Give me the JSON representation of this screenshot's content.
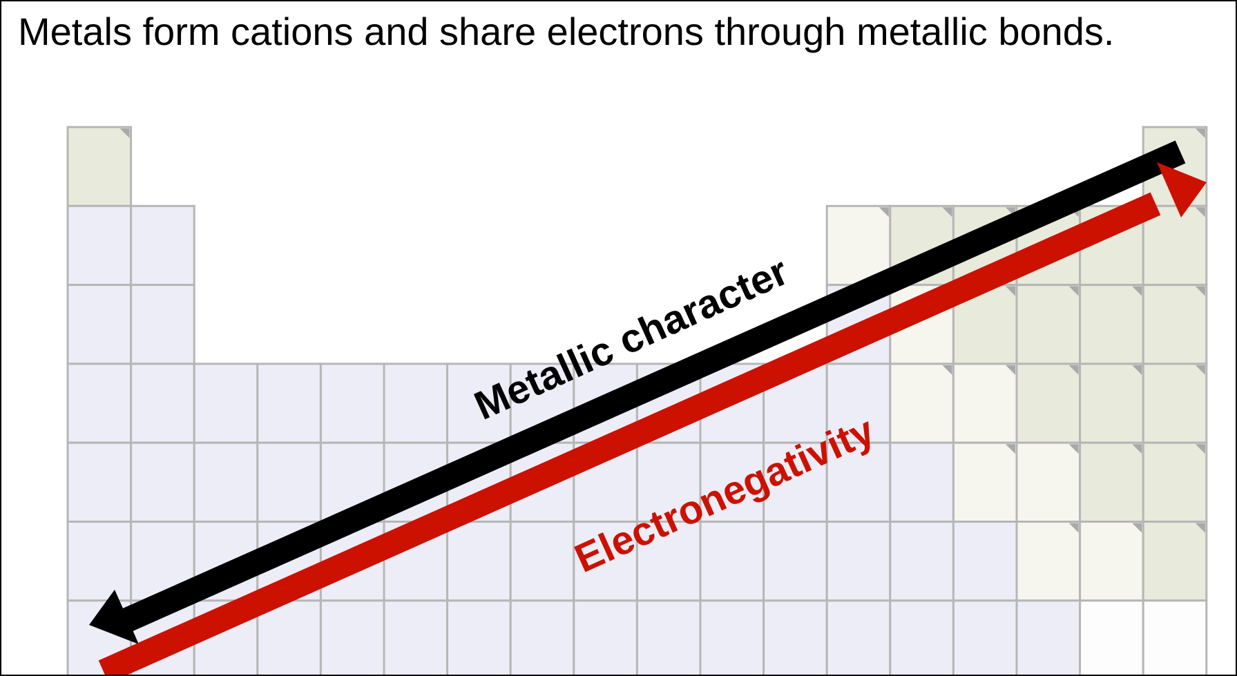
{
  "slide": {
    "title": "Metals form cations and share electrons through metallic bonds."
  },
  "periodic_table": {
    "rows": 7,
    "columns": 18,
    "colors": {
      "metal": "#ededf7",
      "metalloid": "#f6f6ef",
      "nonmetal": "#e8eadb",
      "blank": "#fdfdfd",
      "grid_line": "#b6b6b6"
    },
    "cell_types": [
      [
        "nonmetal",
        null,
        null,
        null,
        null,
        null,
        null,
        null,
        null,
        null,
        null,
        null,
        null,
        null,
        null,
        null,
        null,
        "nonmetal"
      ],
      [
        "metal",
        "metal",
        null,
        null,
        null,
        null,
        null,
        null,
        null,
        null,
        null,
        null,
        "metalloid",
        "nonmetal",
        "nonmetal",
        "nonmetal",
        "nonmetal",
        "nonmetal"
      ],
      [
        "metal",
        "metal",
        null,
        null,
        null,
        null,
        null,
        null,
        null,
        null,
        null,
        null,
        "metal",
        "metalloid",
        "nonmetal",
        "nonmetal",
        "nonmetal",
        "nonmetal"
      ],
      [
        "metal",
        "metal",
        "metal",
        "metal",
        "metal",
        "metal",
        "metal",
        "metal",
        "metal",
        "metal",
        "metal",
        "metal",
        "metal",
        "metalloid",
        "metalloid",
        "nonmetal",
        "nonmetal",
        "nonmetal"
      ],
      [
        "metal",
        "metal",
        "metal",
        "metal",
        "metal",
        "metal",
        "metal",
        "metal",
        "metal",
        "metal",
        "metal",
        "metal",
        "metal",
        "metal",
        "metalloid",
        "metalloid",
        "nonmetal",
        "nonmetal"
      ],
      [
        "metal",
        "metal",
        "metal",
        "metal",
        "metal",
        "metal",
        "metal",
        "metal",
        "metal",
        "metal",
        "metal",
        "metal",
        "metal",
        "metal",
        "metal",
        "metalloid",
        "metalloid",
        "nonmetal"
      ],
      [
        "metal",
        "metal",
        "metal",
        "metal",
        "metal",
        "metal",
        "metal",
        "metal",
        "metal",
        "metal",
        "metal",
        "metal",
        "metal",
        "metal",
        "metal",
        "metal",
        "blank",
        "blank"
      ]
    ]
  },
  "trends": {
    "metallic_character": {
      "label": "Metallic character",
      "color": "#000000",
      "direction": "toward bottom-left"
    },
    "electronegativity": {
      "label": "Electronegativity",
      "color": "#cc1100",
      "direction": "toward top-right"
    }
  }
}
